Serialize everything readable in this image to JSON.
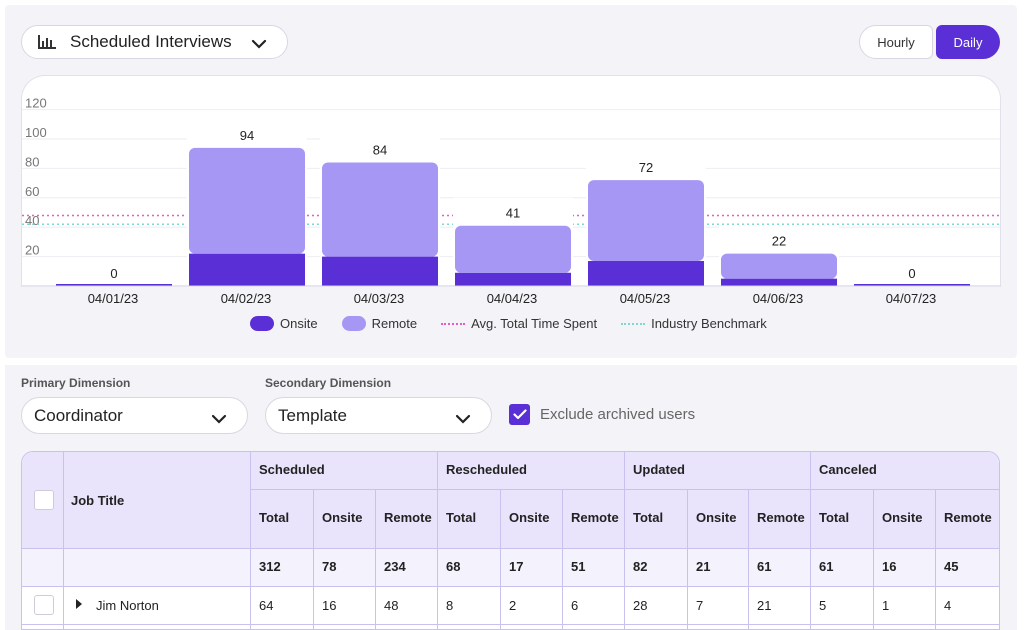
{
  "report": {
    "title": "Scheduled Interviews",
    "icon": "bar-chart-icon"
  },
  "granularity": {
    "options": [
      "Hourly",
      "Daily"
    ],
    "selected": "Daily"
  },
  "chart_data": {
    "type": "bar",
    "stacked": true,
    "categories": [
      "04/01/23",
      "04/02/23",
      "04/03/23",
      "04/04/23",
      "04/05/23",
      "04/06/23",
      "04/07/23"
    ],
    "series": [
      {
        "name": "Onsite",
        "color": "#5b2fd6",
        "values": [
          0,
          22,
          20,
          9,
          17,
          5,
          0
        ]
      },
      {
        "name": "Remote",
        "color": "#a697f5",
        "values": [
          0,
          72,
          64,
          32,
          55,
          17,
          0
        ]
      }
    ],
    "totals": [
      "0",
      "94",
      "84",
      "41",
      "72",
      "22",
      "0"
    ],
    "reference_lines": [
      {
        "name": "Avg. Total Time Spent",
        "color": "#e85bc2",
        "value": 48
      },
      {
        "name": "Industry Benchmark",
        "color": "#7fd9cf",
        "value": 42
      }
    ],
    "yticks": [
      "120",
      "100",
      "80",
      "60",
      "40",
      "20"
    ],
    "ylim": [
      0,
      120
    ]
  },
  "legend": {
    "onsite": "Onsite",
    "remote": "Remote",
    "avg": "Avg. Total Time Spent",
    "benchmark": "Industry Benchmark"
  },
  "filters": {
    "primary_label": "Primary Dimension",
    "primary_value": "Coordinator",
    "secondary_label": "Secondary Dimension",
    "secondary_value": "Template",
    "exclude_label": "Exclude archived users",
    "exclude_checked": true
  },
  "table": {
    "job_title_header": "Job Title",
    "groups": [
      "Scheduled",
      "Rescheduled",
      "Updated",
      "Canceled"
    ],
    "subheaders": [
      "Total",
      "Onsite",
      "Remote"
    ],
    "totals_row": [
      "312",
      "78",
      "234",
      "68",
      "17",
      "51",
      "82",
      "21",
      "61",
      "61",
      "16",
      "45"
    ],
    "rows": [
      {
        "name": "Jim Norton",
        "values": [
          "64",
          "16",
          "48",
          "8",
          "2",
          "6",
          "28",
          "7",
          "21",
          "5",
          "1",
          "4"
        ]
      }
    ]
  }
}
